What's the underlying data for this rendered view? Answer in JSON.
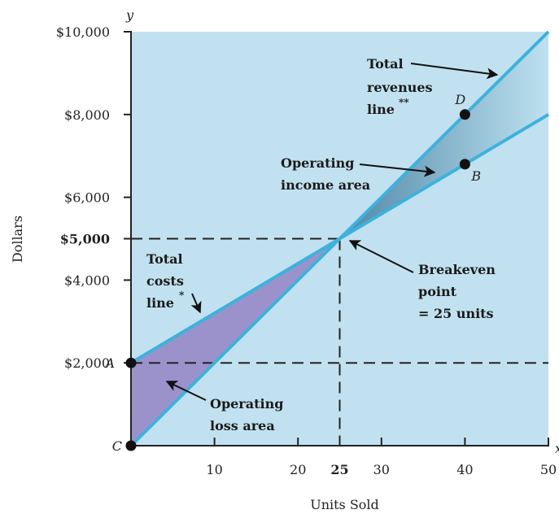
{
  "chart_data": {
    "type": "line",
    "xlabel": "Units Sold",
    "ylabel": "Dollars",
    "y_axis_symbol": "y",
    "x_axis_symbol": "x",
    "xlim": [
      0,
      50
    ],
    "ylim": [
      0,
      10000
    ],
    "x_ticks": [
      {
        "value": 10,
        "label": "10",
        "bold": false
      },
      {
        "value": 20,
        "label": "20",
        "bold": false
      },
      {
        "value": 25,
        "label": "25",
        "bold": true
      },
      {
        "value": 30,
        "label": "30",
        "bold": false
      },
      {
        "value": 40,
        "label": "40",
        "bold": false
      },
      {
        "value": 50,
        "label": "50",
        "bold": false
      }
    ],
    "y_ticks": [
      {
        "value": 2000,
        "label": "$2,000",
        "bold": false
      },
      {
        "value": 4000,
        "label": "$4,000",
        "bold": false
      },
      {
        "value": 5000,
        "label": "$5,000",
        "bold": true
      },
      {
        "value": 6000,
        "label": "$6,000",
        "bold": false
      },
      {
        "value": 8000,
        "label": "$8,000",
        "bold": false
      },
      {
        "value": 10000,
        "label": "$10,000",
        "bold": false
      }
    ],
    "series": [
      {
        "name": "Total revenues line",
        "x": [
          0,
          50
        ],
        "y": [
          0,
          10000
        ]
      },
      {
        "name": "Total costs line",
        "x": [
          0,
          50
        ],
        "y": [
          2000,
          8000
        ]
      }
    ],
    "points": [
      {
        "label": "A",
        "x": 0,
        "y": 2000
      },
      {
        "label": "C",
        "x": 0,
        "y": 0
      },
      {
        "label": "D",
        "x": 40,
        "y": 8000
      },
      {
        "label": "B",
        "x": 40,
        "y": 6800
      }
    ],
    "breakeven": {
      "x": 25,
      "y": 5000
    },
    "fixed_cost": 2000,
    "annotations": {
      "total_revenues": [
        "Total",
        "revenues",
        "line"
      ],
      "total_revenues_mark": "**",
      "operating_income": [
        "Operating",
        "income area"
      ],
      "breakeven": [
        "Breakeven",
        "point",
        "= 25 units"
      ],
      "total_costs": [
        "Total",
        "costs",
        "line"
      ],
      "total_costs_mark": "*",
      "operating_loss": [
        "Operating",
        "loss area"
      ]
    },
    "colors": {
      "background": "#c1e1f0",
      "line": "#3cb2dc",
      "loss_area": "#9b92cc",
      "income_area_dark": "#4f87a6",
      "income_area_light": "#bde1f0",
      "dash": "#222222",
      "axis": "#222222"
    },
    "grid": false
  }
}
